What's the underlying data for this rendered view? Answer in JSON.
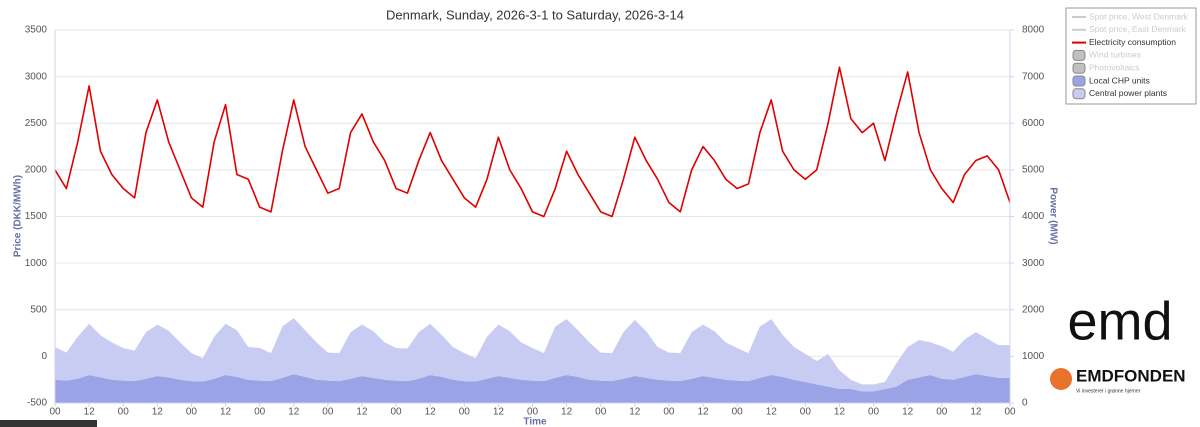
{
  "chart_data": {
    "type": "line",
    "title": "Denmark, Sunday, 2026-3-1 to Saturday, 2026-3-14",
    "xlabel": "Time",
    "ylabel": "Price (DKK/MWh)",
    "y2label": "Power (MW)",
    "x": [
      0,
      4,
      8,
      12,
      16,
      20,
      24,
      28,
      32,
      36,
      40,
      44,
      48,
      52,
      56,
      60,
      64,
      68,
      72,
      76,
      80,
      84,
      88,
      92,
      96,
      100,
      104,
      108,
      112,
      116,
      120,
      124,
      128,
      132,
      136,
      140,
      144,
      148,
      152,
      156,
      160,
      164,
      168,
      172,
      176,
      180,
      184,
      188,
      192,
      196,
      200,
      204,
      208,
      212,
      216,
      220,
      224,
      228,
      232,
      236,
      240,
      244,
      248,
      252,
      256,
      260,
      264,
      268,
      272,
      276,
      280,
      284,
      288,
      292,
      296,
      300,
      304,
      308,
      312,
      316,
      320,
      324,
      328,
      332,
      336
    ],
    "xlim": [
      0,
      336
    ],
    "xticks": [
      {
        "value": 0,
        "label": "00"
      },
      {
        "value": 12,
        "label": "12"
      },
      {
        "value": 24,
        "label": "00"
      },
      {
        "value": 36,
        "label": "12"
      },
      {
        "value": 48,
        "label": "00"
      },
      {
        "value": 60,
        "label": "12"
      },
      {
        "value": 72,
        "label": "00"
      },
      {
        "value": 84,
        "label": "12"
      },
      {
        "value": 96,
        "label": "00"
      },
      {
        "value": 108,
        "label": "12"
      },
      {
        "value": 120,
        "label": "00"
      },
      {
        "value": 132,
        "label": "12"
      },
      {
        "value": 144,
        "label": "00"
      },
      {
        "value": 156,
        "label": "12"
      },
      {
        "value": 168,
        "label": "00"
      },
      {
        "value": 180,
        "label": "12"
      },
      {
        "value": 192,
        "label": "00"
      },
      {
        "value": 204,
        "label": "12"
      },
      {
        "value": 216,
        "label": "00"
      },
      {
        "value": 228,
        "label": "12"
      },
      {
        "value": 240,
        "label": "00"
      },
      {
        "value": 252,
        "label": "12"
      },
      {
        "value": 264,
        "label": "00"
      },
      {
        "value": 276,
        "label": "12"
      },
      {
        "value": 288,
        "label": "00"
      },
      {
        "value": 300,
        "label": "12"
      },
      {
        "value": 312,
        "label": "00"
      },
      {
        "value": 324,
        "label": "12"
      },
      {
        "value": 336,
        "label": "00"
      }
    ],
    "ylim": [
      -500,
      3500
    ],
    "yticks": [
      -500,
      0,
      500,
      1000,
      1500,
      2000,
      2500,
      3000,
      3500
    ],
    "y2lim": [
      0,
      8000
    ],
    "y2ticks": [
      0,
      1000,
      2000,
      3000,
      4000,
      5000,
      6000,
      7000,
      8000
    ],
    "grid": true,
    "legend": "top-right",
    "series": [
      {
        "name": "Spot price, West Denmark",
        "color": "#cccccc",
        "style": "line",
        "visible": false
      },
      {
        "name": "Spot price, East Denmark",
        "color": "#cccccc",
        "style": "line",
        "visible": false
      },
      {
        "name": "Electricity consumption",
        "color": "#e00000",
        "style": "line",
        "axis": "y2",
        "visible": true,
        "values": [
          5000,
          4600,
          5600,
          6800,
          5400,
          4900,
          4600,
          4400,
          5800,
          6500,
          5600,
          5000,
          4400,
          4200,
          5600,
          6400,
          4900,
          4800,
          4200,
          4100,
          5400,
          6500,
          5500,
          5000,
          4500,
          4600,
          5800,
          6200,
          5600,
          5200,
          4600,
          4500,
          5200,
          5800,
          5200,
          4800,
          4400,
          4200,
          4800,
          5700,
          5000,
          4600,
          4100,
          4000,
          4600,
          5400,
          4900,
          4500,
          4100,
          4000,
          4800,
          5700,
          5200,
          4800,
          4300,
          4100,
          5000,
          5500,
          5200,
          4800,
          4600,
          4700,
          5800,
          6500,
          5400,
          5000,
          4800,
          5000,
          6000,
          7200,
          6100,
          5800,
          6000,
          5200,
          6200,
          7100,
          5800,
          5000,
          4600,
          4300,
          4900,
          5200,
          5300,
          5000,
          4300
        ]
      },
      {
        "name": "Wind turbines",
        "color": "#c0c0c0",
        "style": "area",
        "visible": false
      },
      {
        "name": "Photovoltaics",
        "color": "#c0c0c0",
        "style": "area",
        "visible": false
      },
      {
        "name": "Local CHP units",
        "color": "#9aa3e6",
        "style": "area",
        "axis": "y2",
        "visible": true,
        "values": [
          500,
          480,
          520,
          600,
          550,
          500,
          480,
          470,
          520,
          580,
          550,
          500,
          470,
          460,
          520,
          600,
          560,
          500,
          480,
          470,
          540,
          620,
          560,
          500,
          480,
          470,
          520,
          580,
          540,
          500,
          480,
          470,
          520,
          600,
          560,
          500,
          470,
          460,
          520,
          580,
          540,
          500,
          480,
          470,
          540,
          600,
          560,
          500,
          480,
          470,
          520,
          580,
          540,
          500,
          480,
          470,
          520,
          580,
          540,
          500,
          480,
          470,
          540,
          600,
          560,
          500,
          450,
          400,
          350,
          300,
          300,
          250,
          250,
          300,
          350,
          500,
          550,
          600,
          520,
          500,
          560,
          620,
          580,
          540,
          540
        ]
      },
      {
        "name": "Central power plants",
        "color": "#c8ccf2",
        "style": "area",
        "axis": "y2",
        "visible": true,
        "values": [
          700,
          600,
          900,
          1100,
          900,
          800,
          700,
          650,
          1000,
          1100,
          1000,
          800,
          600,
          500,
          900,
          1100,
          1000,
          700,
          700,
          600,
          1100,
          1200,
          1000,
          800,
          600,
          600,
          1000,
          1100,
          1000,
          800,
          700,
          700,
          1000,
          1100,
          900,
          700,
          600,
          500,
          900,
          1100,
          1000,
          800,
          700,
          600,
          1100,
          1200,
          1000,
          800,
          600,
          600,
          1000,
          1200,
          1000,
          700,
          600,
          600,
          1000,
          1100,
          1000,
          800,
          700,
          600,
          1100,
          1200,
          900,
          700,
          600,
          500,
          700,
          400,
          200,
          150,
          150,
          150,
          500,
          700,
          800,
          700,
          700,
          600,
          800,
          900,
          800,
          700,
          700
        ]
      }
    ]
  },
  "logos": {
    "brand": "emd",
    "foundation": "EMDFONDEN",
    "tagline": "Vi investerer i grønne hjerner"
  }
}
